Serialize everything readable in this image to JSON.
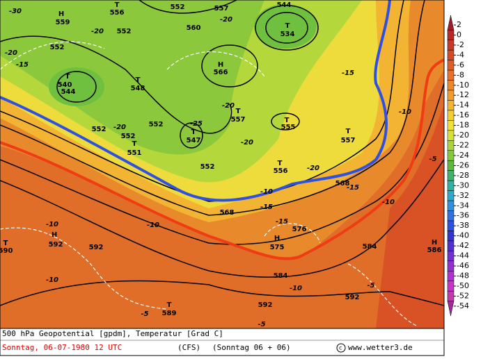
{
  "colorbar": {
    "ticks": [
      2,
      0,
      -2,
      -4,
      -6,
      -8,
      -10,
      -12,
      -14,
      -16,
      -18,
      -20,
      -22,
      -24,
      -26,
      -28,
      -30,
      -32,
      -34,
      -36,
      -38,
      -40,
      -42,
      -44,
      -46,
      -48,
      -50,
      -52,
      -54
    ],
    "colors": [
      "#a01c2c",
      "#b82828",
      "#c83828",
      "#d44a26",
      "#e05c26",
      "#e87028",
      "#ee862c",
      "#f29c2e",
      "#f4b430",
      "#f4cc34",
      "#f0e03c",
      "#d4e03c",
      "#aad43c",
      "#84c83c",
      "#5cb840",
      "#40b06c",
      "#34b0a0",
      "#30a8c8",
      "#3090dc",
      "#3070e0",
      "#3050e0",
      "#3434d0",
      "#5230d0",
      "#7230d0",
      "#9230d0",
      "#b030d0",
      "#c834c4",
      "#c03ca8",
      "#9c2c90"
    ]
  },
  "map_labels": [
    "-30",
    "H",
    "559",
    "T",
    "556",
    "552",
    "557",
    "544",
    "-20",
    "T",
    "534",
    "560",
    "552",
    "-20",
    "552",
    "-15",
    "H",
    "566",
    "T",
    "540",
    "544",
    "T",
    "548",
    "-20",
    "T",
    "557",
    "T",
    "555",
    "-15",
    "-10",
    "552",
    "-20",
    "552",
    "T",
    "551",
    "552",
    "-25",
    "T",
    "547",
    "552",
    "-20",
    "-20",
    "T",
    "556",
    "-20",
    "T",
    "557",
    "568",
    "-15",
    "-10",
    "-15",
    "-10",
    "H",
    "592",
    "592",
    "-10",
    "-15",
    "H",
    "575",
    "576",
    "584",
    "-10",
    "-5",
    "584",
    "-10",
    "592",
    "T",
    "589",
    "-5",
    "592",
    "-5",
    "T",
    "590",
    "H",
    "586",
    "-5",
    "568",
    "-10"
  ],
  "footer": {
    "line1": "500 hPa Geopotential [gpdm], Temperatur [Grad C]",
    "date": "Sonntag, 06-07-1980  12 UTC",
    "model": "(CFS)",
    "run": "(Sonntag 06 + 06)",
    "copyright": "www.wetter3.de"
  }
}
